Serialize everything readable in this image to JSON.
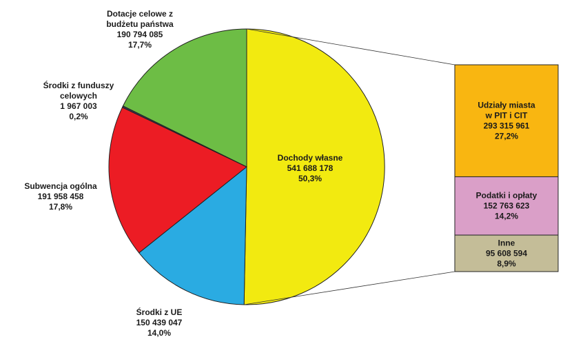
{
  "chart_data": {
    "type": "pie",
    "title": "",
    "slices": [
      {
        "label": [
          "Dochody własne"
        ],
        "value_text": "541 688 178",
        "percent_text": "50,3%",
        "value": 541688178,
        "percent": 50.3,
        "color": "#f2ea10"
      },
      {
        "label": [
          "Środki z UE"
        ],
        "value_text": "150 439 047",
        "percent_text": "14,0%",
        "value": 150439047,
        "percent": 14.0,
        "color": "#2aabe2"
      },
      {
        "label": [
          "Subwencja ogólna"
        ],
        "value_text": "191 958 458",
        "percent_text": "17,8%",
        "value": 191958458,
        "percent": 17.8,
        "color": "#ec1c24"
      },
      {
        "label": [
          "Środki z funduszy",
          "celowych"
        ],
        "value_text": "1 967 003",
        "percent_text": "0,2%",
        "value": 1967003,
        "percent": 0.2,
        "color": "#3a3a58"
      },
      {
        "label": [
          "Dotacje celowe z",
          "budżetu państwa"
        ],
        "value_text": "190 794 085",
        "percent_text": "17,7%",
        "value": 190794085,
        "percent": 17.7,
        "color": "#6dbd45"
      }
    ],
    "breakdown": {
      "of": "Dochody własne",
      "items": [
        {
          "label": [
            "Udziały miasta",
            "w PIT i CIT"
          ],
          "value_text": "293 315 961",
          "percent_text": "27,2%",
          "value": 293315961,
          "percent": 27.2,
          "color": "#f9b611"
        },
        {
          "label": [
            "Podatki i opłaty"
          ],
          "value_text": "152 763 623",
          "percent_text": "14,2%",
          "value": 152763623,
          "percent": 14.2,
          "color": "#da9fc8"
        },
        {
          "label": [
            "Inne"
          ],
          "value_text": "95 608 594",
          "percent_text": "8,9%",
          "value": 95608594,
          "percent": 8.9,
          "color": "#c4bd98"
        }
      ]
    }
  }
}
